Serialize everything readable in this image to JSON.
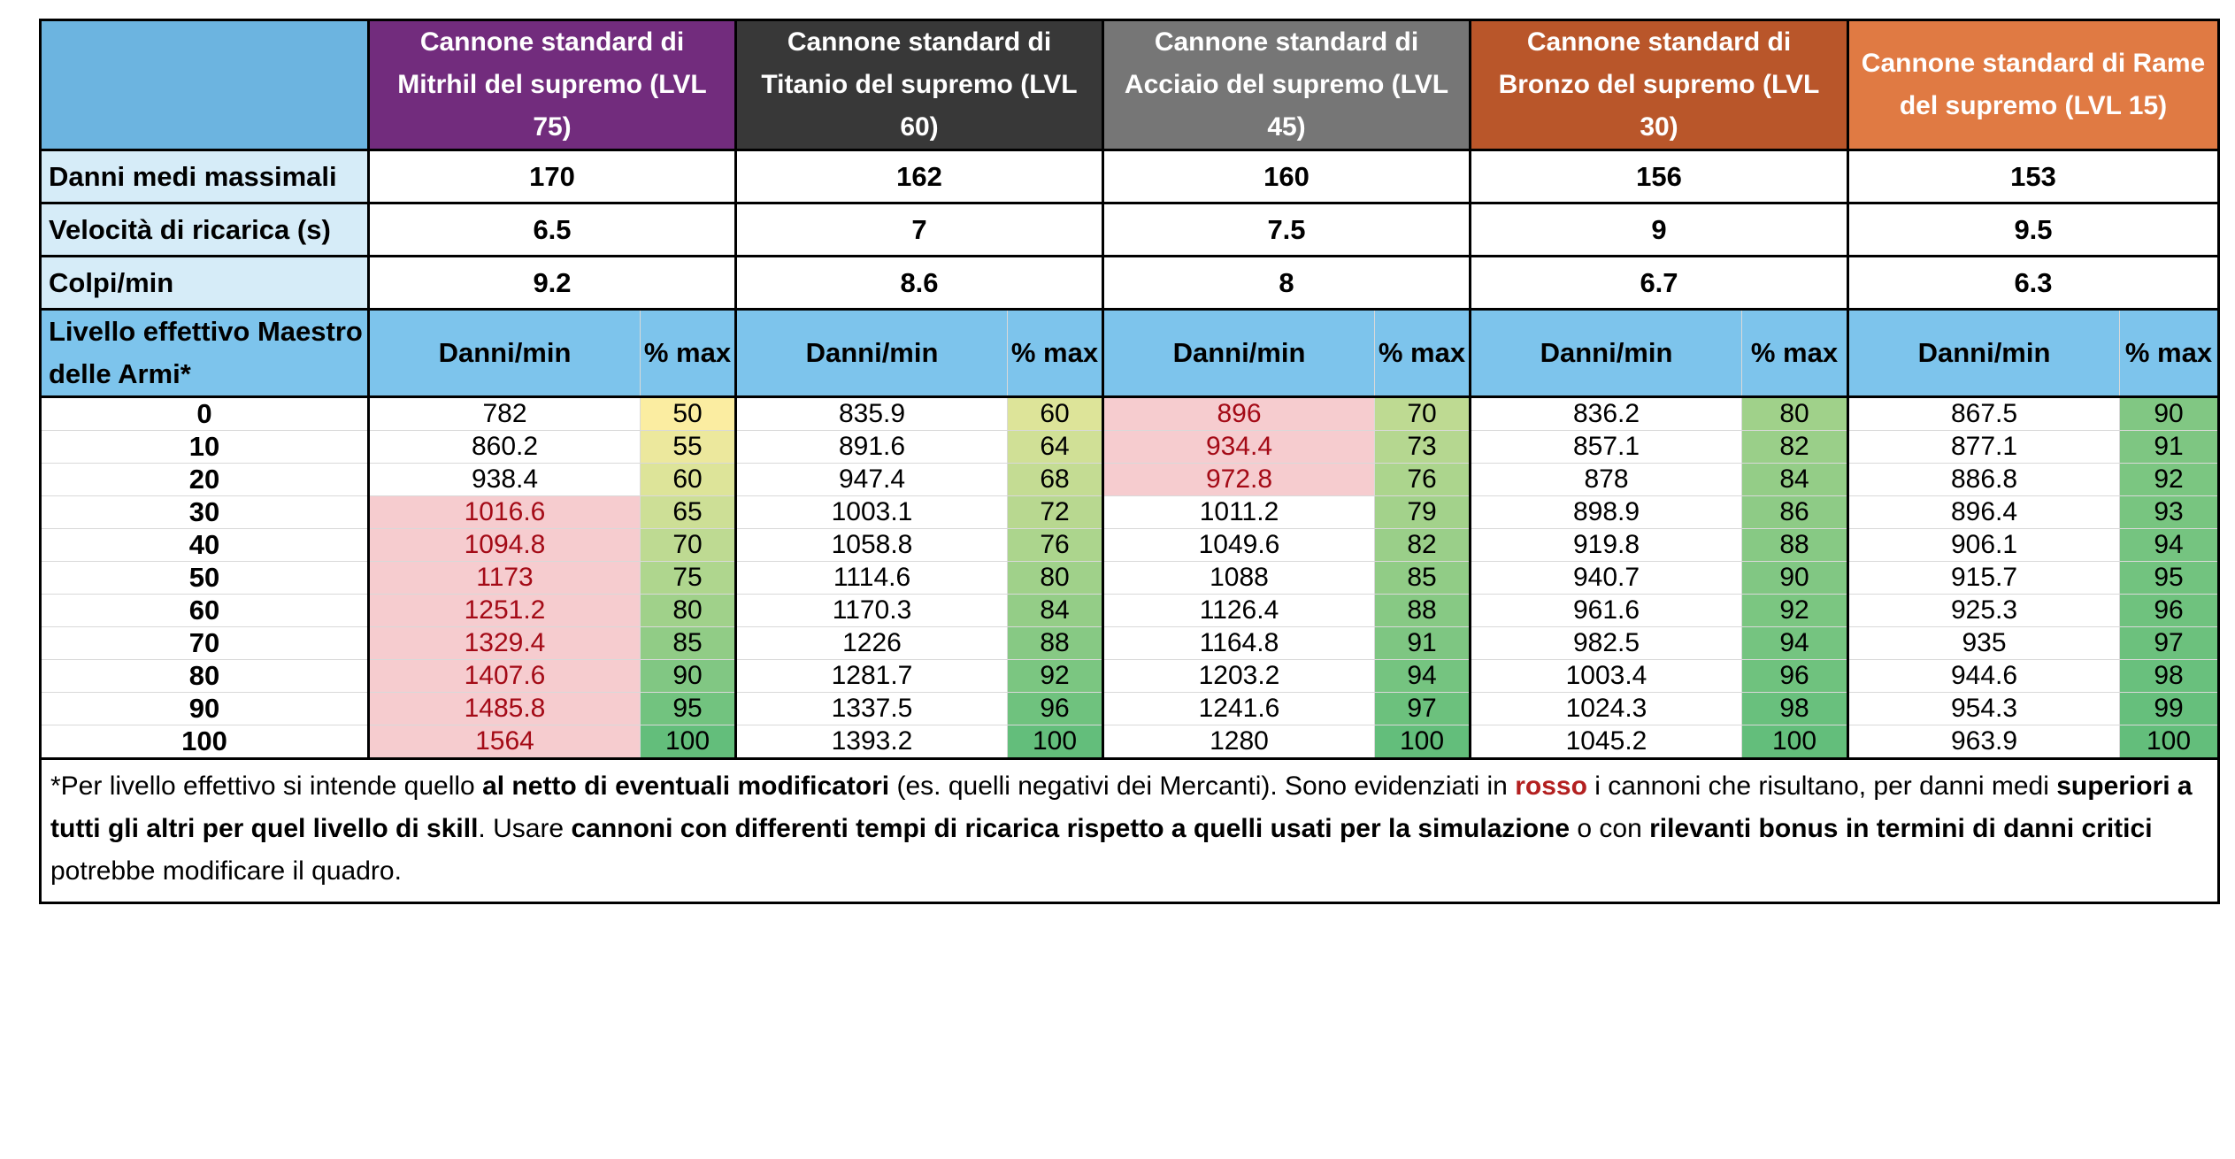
{
  "guns": [
    {
      "name": "Cannone standard di Mitrhil del supremo (LVL 75)",
      "color": "#722c7d",
      "max_damage": "170",
      "reload": "6.5",
      "shots_per_min": "9.2"
    },
    {
      "name": "Cannone standard di Titanio del supremo (LVL 60)",
      "color": "#383838",
      "max_damage": "162",
      "reload": "7",
      "shots_per_min": "8.6"
    },
    {
      "name": "Cannone standard di Acciaio del supremo (LVL 45)",
      "color": "#767676",
      "max_damage": "160",
      "reload": "7.5",
      "shots_per_min": "8"
    },
    {
      "name": "Cannone standard di Bronzo del supremo (LVL 30)",
      "color": "#b9562a",
      "max_damage": "156",
      "reload": "9",
      "shots_per_min": "6.7"
    },
    {
      "name": "Cannone standard di Rame del supremo (LVL 15)",
      "color": "#e07a43",
      "max_damage": "153",
      "reload": "9.5",
      "shots_per_min": "6.3"
    }
  ],
  "row_labels": {
    "max_damage": "Danni medi massimali",
    "reload": "Velocità di ricarica (s)",
    "shots_per_min": "Colpi/min",
    "level_header": "Livello effettivo Maestro delle Armi*"
  },
  "col_headers": {
    "damage": "Danni/min",
    "pct": "% max"
  },
  "levels": [
    "0",
    "10",
    "20",
    "30",
    "40",
    "50",
    "60",
    "70",
    "80",
    "90",
    "100"
  ],
  "damage": [
    [
      "782",
      "860.2",
      "938.4",
      "1016.6",
      "1094.8",
      "1173",
      "1251.2",
      "1329.4",
      "1407.6",
      "1485.8",
      "1564"
    ],
    [
      "835.9",
      "891.6",
      "947.4",
      "1003.1",
      "1058.8",
      "1114.6",
      "1170.3",
      "1226",
      "1281.7",
      "1337.5",
      "1393.2"
    ],
    [
      "896",
      "934.4",
      "972.8",
      "1011.2",
      "1049.6",
      "1088",
      "1126.4",
      "1164.8",
      "1203.2",
      "1241.6",
      "1280"
    ],
    [
      "836.2",
      "857.1",
      "878",
      "898.9",
      "919.8",
      "940.7",
      "961.6",
      "982.5",
      "1003.4",
      "1024.3",
      "1045.2"
    ],
    [
      "867.5",
      "877.1",
      "886.8",
      "896.4",
      "906.1",
      "915.7",
      "925.3",
      "935",
      "944.6",
      "954.3",
      "963.9"
    ]
  ],
  "pct": [
    [
      "50",
      "55",
      "60",
      "65",
      "70",
      "75",
      "80",
      "85",
      "90",
      "95",
      "100"
    ],
    [
      "60",
      "64",
      "68",
      "72",
      "76",
      "80",
      "84",
      "88",
      "92",
      "96",
      "100"
    ],
    [
      "70",
      "73",
      "76",
      "79",
      "82",
      "85",
      "88",
      "91",
      "94",
      "97",
      "100"
    ],
    [
      "80",
      "82",
      "84",
      "86",
      "88",
      "90",
      "92",
      "94",
      "96",
      "98",
      "100"
    ],
    [
      "90",
      "91",
      "92",
      "93",
      "94",
      "95",
      "96",
      "97",
      "98",
      "99",
      "100"
    ]
  ],
  "best_gun_by_level": [
    2,
    2,
    2,
    0,
    0,
    0,
    0,
    0,
    0,
    0,
    0
  ],
  "colors": {
    "highlight_bg": "#f6cccf",
    "highlight_text": "#a40a16",
    "scale_low": "#fbeda1",
    "scale_high": "#63be7b"
  },
  "footnote": [
    {
      "t": "*Per livello effettivo si intende quello ",
      "s": "n"
    },
    {
      "t": "al netto di eventuali modificatori",
      "s": "b"
    },
    {
      "t": " (es. quelli negativi dei Mercanti). Sono evidenziati in ",
      "s": "n"
    },
    {
      "t": "rosso",
      "s": "r"
    },
    {
      "t": " i cannoni che risultano, per danni medi ",
      "s": "n"
    },
    {
      "t": "superiori a tutti gli altri per quel livello di skill",
      "s": "b"
    },
    {
      "t": ". Usare ",
      "s": "n"
    },
    {
      "t": "cannoni con differenti tempi di ricarica rispetto a quelli usati per la simulazione",
      "s": "b"
    },
    {
      "t": " o con ",
      "s": "n"
    },
    {
      "t": "rilevanti bonus in termini di danni critici",
      "s": "b"
    },
    {
      "t": " potrebbe modificare il quadro.",
      "s": "n"
    }
  ]
}
